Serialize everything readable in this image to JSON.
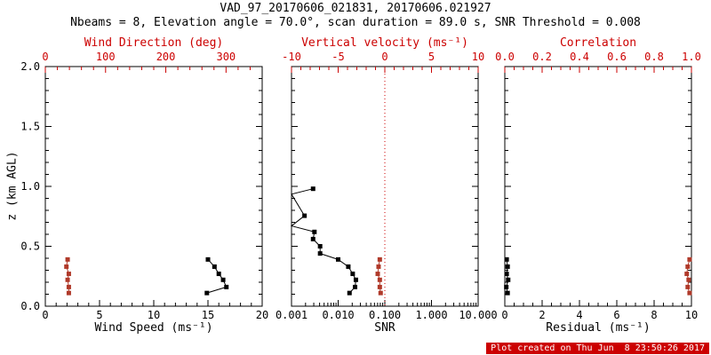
{
  "title": "VAD_97_20170606_021831, 20170606.021927",
  "subtitle": "Nbeams = 8, Elevation angle = 70.0°, scan duration = 89.0 s, SNR Threshold = 0.008",
  "ylabel": "z (km AGL)",
  "footer": {
    "created_stamp": "Plot created on Thu Jun  8 23:50:26 2017"
  },
  "colors": {
    "axis_red": "#cc0000",
    "marker_red": "#b03a2a",
    "axis_black": "#000000",
    "background": "#ffffff",
    "stamp_bg": "#cc0000",
    "stamp_fg": "#ffffff"
  },
  "chart_data": [
    {
      "type": "line",
      "name": "wind",
      "xlabel_top": "Wind Direction (deg)",
      "xlabel_bottom": "Wind Speed (ms⁻¹)",
      "x_top": {
        "min": 0,
        "max": 360,
        "major": [
          0,
          100,
          200,
          300
        ],
        "labels": [
          "0",
          "100",
          "200",
          "300"
        ],
        "minor_step": 20
      },
      "x_bottom": {
        "min": 0,
        "max": 20,
        "major": [
          0,
          5,
          10,
          15,
          20
        ],
        "labels": [
          "0",
          "5",
          "10",
          "15",
          "20"
        ],
        "minor_step": 1
      },
      "y": {
        "min": 0,
        "max": 2,
        "major": [
          0,
          0.5,
          1,
          1.5,
          2
        ],
        "labels": [
          "0.0",
          "0.5",
          "1.0",
          "1.5",
          "2.0"
        ],
        "minor_step": 0.1,
        "show_labels": true
      },
      "series": [
        {
          "name": "wind-speed",
          "axis": "bottom",
          "color": "#000000",
          "points": [
            [
              14.9,
              0.11
            ],
            [
              16.7,
              0.16
            ],
            [
              16.4,
              0.22
            ],
            [
              16.0,
              0.27
            ],
            [
              15.6,
              0.33
            ],
            [
              15.0,
              0.39
            ]
          ]
        },
        {
          "name": "wind-direction",
          "axis": "top",
          "color": "#b03a2a",
          "points": [
            [
              39,
              0.11
            ],
            [
              39,
              0.16
            ],
            [
              37,
              0.22
            ],
            [
              39,
              0.27
            ],
            [
              35,
              0.33
            ],
            [
              37,
              0.39
            ]
          ]
        }
      ]
    },
    {
      "type": "line",
      "name": "snr",
      "xlabel_top": "Vertical velocity (ms⁻¹)",
      "xlabel_bottom": "SNR",
      "x_top": {
        "min": -10,
        "max": 10,
        "major": [
          -10,
          -5,
          0,
          5,
          10
        ],
        "labels": [
          "-10",
          "-5",
          "0",
          "5",
          "10"
        ],
        "minor_step": 1
      },
      "x_bottom": {
        "scale": "log",
        "min": 0.001,
        "max": 10,
        "major": [
          0.001,
          0.01,
          0.1,
          1,
          10
        ],
        "labels": [
          "0.001",
          "0.010",
          "0.100",
          "1.000",
          "10.000"
        ]
      },
      "y": {
        "min": 0,
        "max": 2,
        "major": [
          0,
          0.5,
          1,
          1.5,
          2
        ],
        "labels": [],
        "minor_step": 0.1,
        "show_labels": false
      },
      "refline": {
        "axis": "top",
        "value": 0,
        "color": "#cc0000",
        "style": "dotted"
      },
      "series": [
        {
          "name": "snr-profile",
          "axis": "bottom",
          "color": "#000000",
          "points": [
            [
              0.0175,
              0.11
            ],
            [
              0.023,
              0.16
            ],
            [
              0.024,
              0.22
            ],
            [
              0.0205,
              0.27
            ],
            [
              0.0165,
              0.33
            ],
            [
              0.01,
              0.39
            ],
            [
              0.0041,
              0.44
            ],
            [
              0.0041,
              0.5
            ],
            [
              0.0029,
              0.56
            ],
            [
              0.0031,
              0.62
            ],
            [
              0.001,
              0.67,
              false
            ],
            [
              0.0019,
              0.755
            ],
            [
              0.001,
              0.935,
              false
            ],
            [
              0.0029,
              0.98
            ]
          ]
        },
        {
          "name": "vertical-velocity",
          "axis": "top",
          "color": "#b03a2a",
          "points": [
            [
              -0.45,
              0.11
            ],
            [
              -0.54,
              0.16
            ],
            [
              -0.54,
              0.22
            ],
            [
              -0.76,
              0.27
            ],
            [
              -0.67,
              0.33
            ],
            [
              -0.54,
              0.39
            ]
          ]
        }
      ]
    },
    {
      "type": "line",
      "name": "residual",
      "xlabel_top": "Correlation",
      "xlabel_bottom": "Residual (ms⁻¹)",
      "x_top": {
        "min": 0,
        "max": 1,
        "major": [
          0,
          0.2,
          0.4,
          0.6,
          0.8,
          1
        ],
        "labels": [
          "0.0",
          "0.2",
          "0.4",
          "0.6",
          "0.8",
          "1.0"
        ],
        "minor_step": 0.05
      },
      "x_bottom": {
        "min": 0,
        "max": 10,
        "major": [
          0,
          2,
          4,
          6,
          8,
          10
        ],
        "labels": [
          "0",
          "2",
          "4",
          "6",
          "8",
          "10"
        ],
        "minor_step": 0.5
      },
      "y": {
        "min": 0,
        "max": 2,
        "major": [
          0,
          0.5,
          1,
          1.5,
          2
        ],
        "labels": [],
        "minor_step": 0.1,
        "show_labels": false
      },
      "series": [
        {
          "name": "residual",
          "axis": "bottom",
          "color": "#000000",
          "points": [
            [
              0.15,
              0.11
            ],
            [
              0.08,
              0.16
            ],
            [
              0.18,
              0.22
            ],
            [
              0.1,
              0.27
            ],
            [
              0.15,
              0.33
            ],
            [
              0.1,
              0.39
            ]
          ]
        },
        {
          "name": "correlation",
          "axis": "top",
          "color": "#b03a2a",
          "points": [
            [
              0.99,
              0.11
            ],
            [
              0.98,
              0.16
            ],
            [
              0.985,
              0.22
            ],
            [
              0.975,
              0.27
            ],
            [
              0.98,
              0.33
            ],
            [
              0.99,
              0.39
            ]
          ]
        }
      ]
    }
  ]
}
